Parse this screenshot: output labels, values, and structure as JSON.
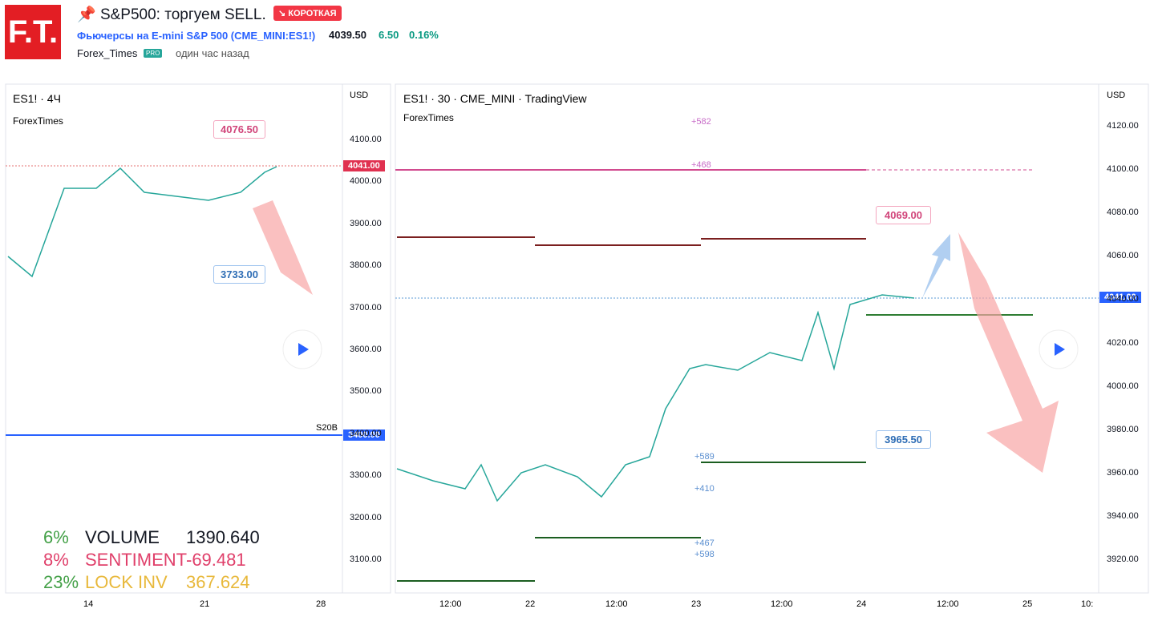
{
  "header": {
    "logo": "F.T.",
    "title": "S&P500: торгуем SELL.",
    "badge": "↘ КОРОТКАЯ",
    "symbol": "Фьючерсы на E-mini S&P 500 (CME_MINI:ES1!)",
    "price": "4039.50",
    "change": "6.50",
    "change_pct": "0.16%",
    "author": "Forex_Times",
    "pro": "PRO",
    "time": "один час назад"
  },
  "left_chart": {
    "title": "ES1! · 4Ч",
    "author": "ForexTimes",
    "currency": "USD",
    "y_labels": [
      "4100.00",
      "4000.00",
      "3900.00",
      "3800.00",
      "3700.00",
      "3600.00",
      "3500.00",
      "3400.00",
      "3300.00",
      "3200.00",
      "3100.00"
    ],
    "x_labels": [
      "14",
      "21",
      "28"
    ],
    "price_tag": "4041.00",
    "level_tag": "3400.00",
    "level_label": "S20B",
    "callouts": [
      "4076.50",
      "3733.00"
    ],
    "stats": [
      {
        "pct": "6%",
        "name": "VOLUME",
        "value": "1390.640"
      },
      {
        "pct": "8%",
        "name": "SENTIMENT",
        "value": "-69.481"
      },
      {
        "pct": "23%",
        "name": "LOCK INV",
        "value": "367.624"
      }
    ]
  },
  "right_chart": {
    "title": "ES1! · 30 · CME_MINI · TradingView",
    "author": "ForexTimes",
    "currency": "USD",
    "y_labels": [
      "4120.00",
      "4100.00",
      "4080.00",
      "4060.00",
      "4040.00",
      "4020.00",
      "4000.00",
      "3980.00",
      "3960.00",
      "3940.00",
      "3920.00"
    ],
    "x_labels": [
      "12:00",
      "22",
      "12:00",
      "23",
      "12:00",
      "24",
      "12:00",
      "25",
      "10:"
    ],
    "price_tag": "4041.00",
    "callouts": [
      "4069.00",
      "3965.50"
    ],
    "notes": [
      "+582",
      "+468",
      "+589",
      "+410",
      "+467",
      "+598"
    ]
  }
}
